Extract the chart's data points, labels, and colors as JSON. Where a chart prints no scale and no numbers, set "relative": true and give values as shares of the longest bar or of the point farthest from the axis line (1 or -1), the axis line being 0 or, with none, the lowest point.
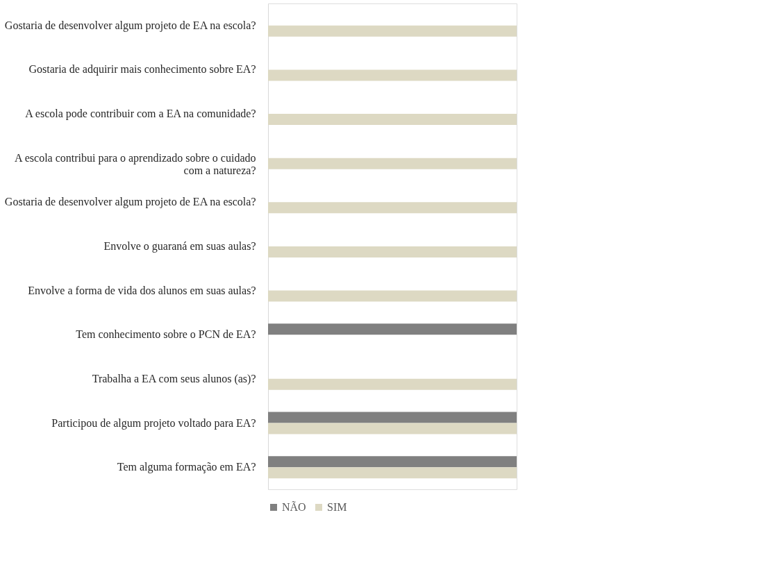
{
  "chart_data": {
    "type": "bar",
    "orientation": "horizontal",
    "relative": true,
    "grid": false,
    "legend": "bottom",
    "categories": [
      "Gostaria de desenvolver algum projeto de EA na escola?",
      "Gostaria de adquirir mais conhecimento sobre EA?",
      "A escola pode contribuir com a EA na comunidade?",
      "A escola contribui para o aprendizado sobre o cuidado com a natureza?",
      "Gostaria de desenvolver algum projeto de EA na escola?",
      "Envolve o guaraná em suas aulas?",
      "Envolve a forma de vida dos alunos em suas aulas?",
      "Tem conhecimento sobre o PCN de EA?",
      "Trabalha a EA com seus alunos (as)?",
      "Participou de algum projeto voltado para EA?",
      "Tem alguma formação em EA?"
    ],
    "series": [
      {
        "name": "NÃO",
        "color": "#808080",
        "values": [
          null,
          null,
          null,
          null,
          null,
          null,
          null,
          1,
          null,
          1,
          1
        ]
      },
      {
        "name": "SIM",
        "color": "#ddd9c3",
        "values": [
          1,
          1,
          1,
          1,
          1,
          1,
          1,
          null,
          1,
          1,
          1
        ]
      }
    ]
  }
}
